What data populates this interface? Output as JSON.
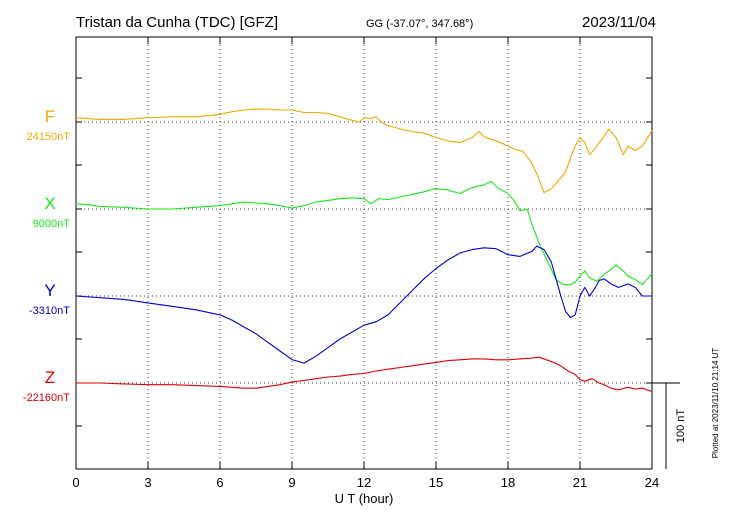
{
  "header": {
    "title": "Tristan da Cunha (TDC)  [GFZ]",
    "coords": "GG (-37.07°, 347.68°)",
    "date": "2023/11/04"
  },
  "footer": {
    "plotted_at": "Plotted at 2023/11/10 21:14 UT"
  },
  "scale_bar": {
    "label": "100 nT"
  },
  "colors": {
    "F": "#f0a800",
    "X": "#19e619",
    "Y": "#0000d0",
    "Z": "#e00000"
  },
  "chart_data": {
    "type": "line",
    "title": "Tristan da Cunha (TDC)  [GFZ]",
    "xlabel": "U T (hour)",
    "xlim": [
      0,
      24
    ],
    "xticks": [
      "0",
      "3",
      "6",
      "9",
      "12",
      "15",
      "18",
      "21",
      "24"
    ],
    "grid": true,
    "scale_nT": 100,
    "series": [
      {
        "name": "F",
        "baseline_label": "24150nT",
        "baseline_nT": 24150,
        "x": [
          0,
          0.5,
          1,
          2,
          3,
          4,
          5,
          6,
          6.5,
          7,
          7.5,
          8,
          8.5,
          9,
          9.5,
          10,
          10.5,
          11,
          11.5,
          11.8,
          12,
          12.3,
          12.5,
          12.8,
          13,
          13.5,
          14,
          14.5,
          15,
          15.5,
          16,
          16.5,
          16.8,
          17,
          17.3,
          17.6,
          18,
          18.3,
          18.6,
          18.9,
          19.2,
          19.5,
          19.8,
          20.1,
          20.4,
          20.6,
          20.8,
          21,
          21.2,
          21.4,
          21.6,
          21.8,
          22,
          22.2,
          22.5,
          22.8,
          23,
          23.3,
          23.6,
          24
        ],
        "y": [
          24155,
          24154,
          24153,
          24153,
          24155,
          24156,
          24156,
          24159,
          24162,
          24164,
          24165,
          24165,
          24164,
          24164,
          24161,
          24161,
          24160,
          24156,
          24152,
          24150,
          24155,
          24154,
          24156,
          24148,
          24146,
          24142,
          24139,
          24137,
          24132,
          24128,
          24126,
          24132,
          24139,
          24133,
          24130,
          24127,
          24122,
          24118,
          24116,
          24106,
          24090,
          24068,
          24072,
          24082,
          24092,
          24108,
          24122,
          24132,
          24126,
          24112,
          24118,
          24126,
          24133,
          24142,
          24132,
          24112,
          24122,
          24117,
          24122,
          24140
        ]
      },
      {
        "name": "X",
        "baseline_label": "9000nT",
        "baseline_nT": 9000,
        "x": [
          0,
          0.5,
          1,
          2,
          3,
          4,
          5,
          6,
          6.5,
          7,
          7.5,
          8,
          8.5,
          9,
          9.5,
          10,
          10.5,
          11,
          11.5,
          12,
          12.3,
          12.6,
          13,
          13.5,
          14,
          14.5,
          15,
          15.5,
          16,
          16.5,
          17,
          17.3,
          17.6,
          18,
          18.3,
          18.5,
          18.8,
          19,
          19.3,
          19.6,
          20,
          20.3,
          20.6,
          20.8,
          21,
          21.2,
          21.4,
          21.7,
          22,
          22.3,
          22.5,
          22.8,
          23,
          23.3,
          23.6,
          24
        ],
        "y": [
          9006,
          9005,
          9003,
          9002,
          9000,
          9000,
          9002,
          9004,
          9006,
          9008,
          9007,
          9006,
          9004,
          9001,
          9004,
          9008,
          9010,
          9012,
          9013,
          9012,
          9006,
          9012,
          9011,
          9014,
          9017,
          9020,
          9024,
          9022,
          9018,
          9025,
          9028,
          9032,
          9024,
          9018,
          9008,
          8998,
          9000,
          8982,
          8960,
          8942,
          8918,
          8912,
          8912,
          8915,
          8922,
          8928,
          8920,
          8916,
          8924,
          8930,
          8935,
          8928,
          8922,
          8918,
          8912,
          8925
        ]
      },
      {
        "name": "Y",
        "baseline_label": "-3310nT",
        "baseline_nT": -3310,
        "x": [
          0,
          1,
          2,
          3,
          4,
          5,
          6,
          6.5,
          7,
          7.5,
          8,
          8.5,
          9,
          9.5,
          10,
          10.5,
          11,
          11.5,
          12,
          12.5,
          13,
          13.5,
          14,
          14.5,
          15,
          15.5,
          16,
          16.5,
          17,
          17.5,
          18,
          18.5,
          19,
          19.2,
          19.5,
          19.8,
          20,
          20.2,
          20.4,
          20.6,
          20.8,
          21,
          21.2,
          21.4,
          21.6,
          21.8,
          22,
          22.3,
          22.6,
          23,
          23.3,
          23.6,
          24
        ],
        "y": [
          -3310,
          -3312,
          -3314,
          -3318,
          -3322,
          -3326,
          -3332,
          -3338,
          -3346,
          -3354,
          -3364,
          -3374,
          -3384,
          -3388,
          -3380,
          -3370,
          -3360,
          -3352,
          -3344,
          -3340,
          -3332,
          -3318,
          -3304,
          -3290,
          -3278,
          -3268,
          -3260,
          -3256,
          -3254,
          -3255,
          -3262,
          -3264,
          -3258,
          -3252,
          -3256,
          -3270,
          -3290,
          -3310,
          -3328,
          -3335,
          -3332,
          -3310,
          -3300,
          -3310,
          -3302,
          -3292,
          -3290,
          -3296,
          -3300,
          -3296,
          -3300,
          -3310,
          -3310
        ]
      },
      {
        "name": "Z",
        "baseline_label": "-22160nT",
        "baseline_nT": -22160,
        "x": [
          0,
          1,
          2,
          3,
          4,
          5,
          6,
          6.5,
          7,
          7.5,
          8,
          8.5,
          9,
          9.5,
          10,
          10.5,
          11,
          11.5,
          12,
          12.5,
          13,
          13.5,
          14,
          14.5,
          15,
          15.5,
          16,
          16.5,
          17,
          17.5,
          18,
          18.5,
          19,
          19.3,
          19.6,
          19.9,
          20.2,
          20.5,
          20.8,
          21,
          21.2,
          21.5,
          21.8,
          22,
          22.3,
          22.6,
          23,
          23.3,
          23.6,
          24
        ],
        "y": [
          -22160,
          -22160,
          -22161,
          -22162,
          -22162,
          -22163,
          -22164,
          -22165,
          -22166,
          -22166,
          -22164,
          -22162,
          -22159,
          -22157,
          -22155,
          -22153,
          -22152,
          -22150,
          -22149,
          -22146,
          -22144,
          -22142,
          -22140,
          -22138,
          -22136,
          -22134,
          -22133,
          -22132,
          -22132,
          -22133,
          -22133,
          -22132,
          -22131,
          -22130,
          -22133,
          -22136,
          -22140,
          -22146,
          -22150,
          -22156,
          -22158,
          -22155,
          -22160,
          -22162,
          -22166,
          -22168,
          -22165,
          -22167,
          -22166,
          -22170
        ]
      }
    ]
  }
}
